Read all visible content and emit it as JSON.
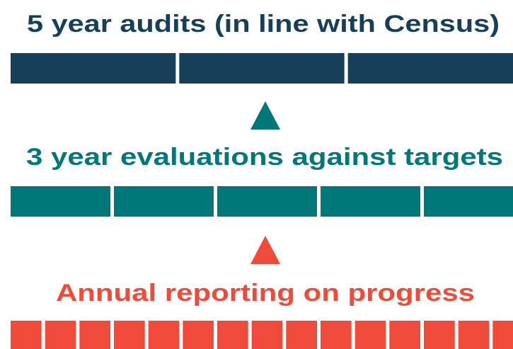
{
  "levels": [
    {
      "label": "5 year audits (in line with Census)"
    },
    {
      "label": "3 year evaluations against targets"
    },
    {
      "label": "Annual reporting on progress"
    }
  ]
}
